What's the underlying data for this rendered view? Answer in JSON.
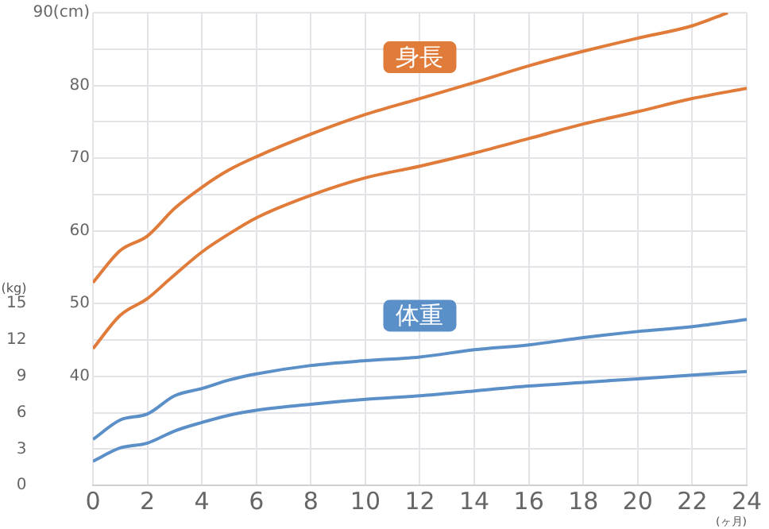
{
  "chart_data": {
    "type": "line",
    "xlabel": "(ヶ月)",
    "y2label": "(kg)",
    "xlim": [
      0,
      24
    ],
    "xticks": [
      0,
      2,
      4,
      6,
      8,
      10,
      12,
      14,
      16,
      18,
      20,
      22,
      24
    ],
    "ylim": [
      25,
      90
    ],
    "yticks": [
      {
        "value": 25,
        "label": null
      },
      {
        "value": 30,
        "label": null
      },
      {
        "value": 35,
        "label": null
      },
      40,
      {
        "value": 45,
        "label": null
      },
      50,
      {
        "value": 55,
        "label": null
      },
      60,
      {
        "value": 65,
        "label": null
      },
      70,
      {
        "value": 75,
        "label": null
      },
      80,
      {
        "value": 85,
        "label": null
      },
      {
        "value": 90,
        "label": "90(cm)"
      }
    ],
    "y2lim": [
      0,
      39
    ],
    "y2ticks": [
      0,
      3,
      6,
      9,
      12,
      15
    ],
    "grid": true,
    "marker": "none",
    "line_style": "solid",
    "annotations": [
      "身長",
      "体重"
    ],
    "series": [
      {
        "color": "#e07b39",
        "x": [
          0,
          1,
          2,
          3,
          4,
          5,
          6,
          8,
          10,
          12,
          14,
          16,
          18,
          20,
          22,
          23.3
        ],
        "values": [
          52.9,
          57.3,
          59.3,
          63.1,
          66,
          68.4,
          70.2,
          73.3,
          76,
          78.2,
          80.4,
          82.7,
          84.7,
          86.5,
          88.2,
          90
        ]
      },
      {
        "color": "#e07b39",
        "x": [
          0,
          1,
          2,
          2.8,
          4,
          5,
          6,
          8,
          10,
          12,
          14,
          16,
          18,
          20,
          22,
          24
        ],
        "values": [
          43.8,
          48.4,
          50.7,
          53.3,
          57.1,
          59.6,
          61.8,
          64.9,
          67.3,
          68.9,
          70.7,
          72.7,
          74.7,
          76.4,
          78.2,
          79.6
        ]
      },
      {
        "color": "#5b8fc7",
        "axis": "y2",
        "x": [
          0,
          1,
          2,
          3,
          4,
          5,
          6,
          8,
          10,
          12,
          14,
          16,
          18,
          20,
          22,
          24
        ],
        "values": [
          3.8,
          5.4,
          5.9,
          7.4,
          8,
          8.7,
          9.2,
          9.9,
          10.3,
          10.6,
          11.2,
          11.6,
          12.2,
          12.7,
          13.1,
          13.7
        ]
      },
      {
        "color": "#5b8fc7",
        "axis": "y2",
        "x": [
          0,
          1,
          2,
          3,
          4,
          5,
          6,
          8,
          10,
          12,
          14,
          16,
          18,
          20,
          22,
          24
        ],
        "values": [
          2,
          3.1,
          3.5,
          4.5,
          5.2,
          5.8,
          6.2,
          6.7,
          7.1,
          7.4,
          7.8,
          8.2,
          8.5,
          8.8,
          9.1,
          9.4
        ]
      }
    ]
  }
}
